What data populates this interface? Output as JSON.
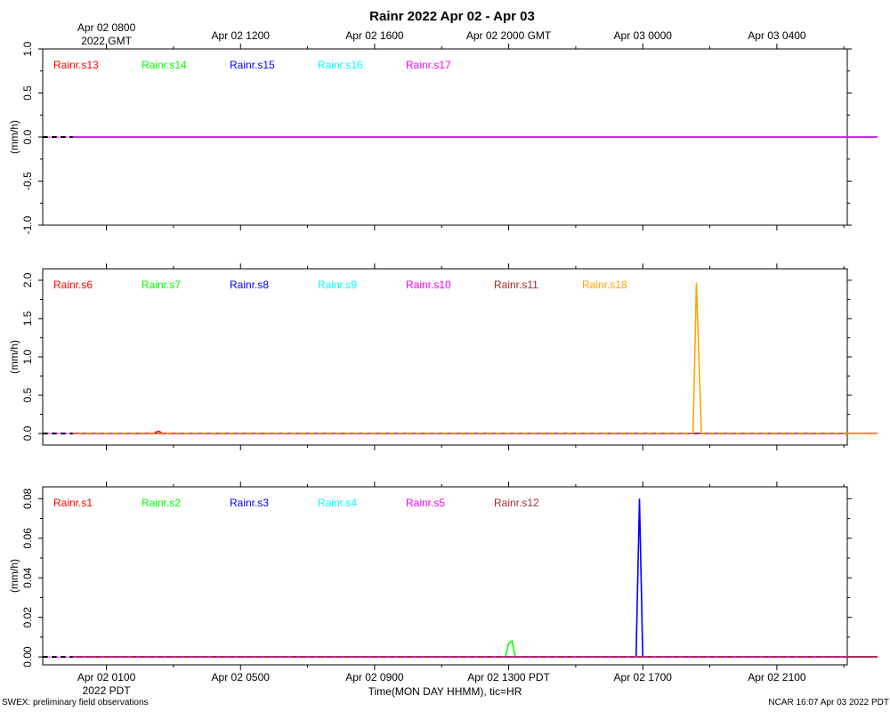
{
  "page": {
    "title": "Rainr 2022 Apr 02 - Apr 03",
    "xlabel": "Time(MON DAY HHMM), tic=HR",
    "footer_left": "SWEX: preliminary field observations",
    "footer_right": "NCAR 16:07 Apr 03 2022 PDT"
  },
  "colors": {
    "red": "#ff0000",
    "green": "#00ff00",
    "blue": "#0000ff",
    "cyan": "#00ffff",
    "magenta": "#ff00ff",
    "brown": "#a52a2a",
    "orange": "#ffa500",
    "axis": "#000000"
  },
  "chart_data": [
    {
      "type": "line",
      "title": "Rainr 2022 Apr 02 - Apr 03",
      "ylabel": "(mm/h)",
      "ylim": [
        -1.0,
        1.0
      ],
      "yticks": [
        -1.0,
        -0.5,
        0.0,
        0.5,
        1.0
      ],
      "yticklabels": [
        "-1.0",
        "-0.5",
        "0.0",
        "0.5",
        "1.0"
      ],
      "top_axis": {
        "ticks": [
          {
            "hour_pdt": 1,
            "label": "Apr 02 0800",
            "sublabel": "2022 GMT"
          },
          {
            "hour_pdt": 5,
            "label": "Apr 02 1200"
          },
          {
            "hour_pdt": 9,
            "label": "Apr 02 1600"
          },
          {
            "hour_pdt": 13,
            "label": "Apr 02 2000 GMT"
          },
          {
            "hour_pdt": 17,
            "label": "Apr 03 0000"
          },
          {
            "hour_pdt": 21,
            "label": "Apr 03 0400"
          }
        ]
      },
      "series": [
        {
          "name": "Rainr.s13",
          "color": "#ff0000",
          "points": [
            [
              0,
              0
            ],
            [
              24,
              0
            ]
          ]
        },
        {
          "name": "Rainr.s14",
          "color": "#00ff00",
          "points": [
            [
              0,
              0
            ],
            [
              24,
              0
            ]
          ]
        },
        {
          "name": "Rainr.s15",
          "color": "#0000ff",
          "points": [
            [
              0,
              0
            ],
            [
              24,
              0
            ]
          ]
        },
        {
          "name": "Rainr.s16",
          "color": "#00ffff",
          "points": [
            [
              0,
              0
            ],
            [
              24,
              0
            ]
          ]
        },
        {
          "name": "Rainr.s17",
          "color": "#ff00ff",
          "points": [
            [
              0,
              0
            ],
            [
              24,
              0
            ]
          ]
        }
      ]
    },
    {
      "type": "line",
      "ylabel": "(mm/h)",
      "ylim": [
        -0.15,
        2.15
      ],
      "yticks": [
        0.0,
        0.5,
        1.0,
        1.5,
        2.0
      ],
      "yticklabels": [
        "0.0",
        "0.5",
        "1.0",
        "1.5",
        "2.0"
      ],
      "series": [
        {
          "name": "Rainr.s6",
          "color": "#ff0000",
          "points": [
            [
              0,
              0
            ],
            [
              2.4,
              0
            ],
            [
              2.55,
              0.03
            ],
            [
              2.7,
              0
            ],
            [
              24,
              0
            ]
          ]
        },
        {
          "name": "Rainr.s7",
          "color": "#00ff00",
          "points": [
            [
              0,
              0
            ],
            [
              24,
              0
            ]
          ]
        },
        {
          "name": "Rainr.s8",
          "color": "#0000ff",
          "points": [
            [
              0,
              0
            ],
            [
              24,
              0
            ]
          ]
        },
        {
          "name": "Rainr.s9",
          "color": "#00ffff",
          "points": [
            [
              0,
              0
            ],
            [
              24,
              0
            ]
          ]
        },
        {
          "name": "Rainr.s10",
          "color": "#ff00ff",
          "points": [
            [
              0,
              0
            ],
            [
              24,
              0
            ]
          ]
        },
        {
          "name": "Rainr.s11",
          "color": "#a52a2a",
          "points": [
            [
              0,
              0
            ],
            [
              24,
              0
            ]
          ]
        },
        {
          "name": "Rainr.s18",
          "color": "#ffa500",
          "points": [
            [
              0,
              0
            ],
            [
              18.4,
              0
            ],
            [
              18.5,
              0
            ],
            [
              18.6,
              1.97
            ],
            [
              18.75,
              0
            ],
            [
              24,
              0
            ]
          ]
        }
      ]
    },
    {
      "type": "line",
      "ylabel": "(mm/h)",
      "ylim": [
        -0.004,
        0.086
      ],
      "yticks": [
        0.0,
        0.02,
        0.04,
        0.06,
        0.08
      ],
      "yticklabels": [
        "0.00",
        "0.02",
        "0.04",
        "0.06",
        "0.08"
      ],
      "bottom_axis": {
        "ticks": [
          {
            "hour_pdt": 1,
            "label": "Apr 02 0100",
            "sublabel": "2022 PDT"
          },
          {
            "hour_pdt": 5,
            "label": "Apr 02 0500"
          },
          {
            "hour_pdt": 9,
            "label": "Apr 02 0900"
          },
          {
            "hour_pdt": 13,
            "label": "Apr 02 1300 PDT"
          },
          {
            "hour_pdt": 17,
            "label": "Apr 02 1700"
          },
          {
            "hour_pdt": 21,
            "label": "Apr 02 2100"
          }
        ]
      },
      "series": [
        {
          "name": "Rainr.s1",
          "color": "#ff0000",
          "points": [
            [
              0,
              0
            ],
            [
              24,
              0
            ]
          ]
        },
        {
          "name": "Rainr.s2",
          "color": "#00ff00",
          "points": [
            [
              0,
              0
            ],
            [
              12.9,
              0
            ],
            [
              13.0,
              0.007
            ],
            [
              13.1,
              0.008
            ],
            [
              13.2,
              0
            ],
            [
              24,
              0
            ]
          ]
        },
        {
          "name": "Rainr.s3",
          "color": "#0000ff",
          "points": [
            [
              0,
              0
            ],
            [
              16.7,
              0
            ],
            [
              16.8,
              0
            ],
            [
              16.9,
              0.08
            ],
            [
              17.0,
              0
            ],
            [
              24,
              0
            ]
          ]
        },
        {
          "name": "Rainr.s4",
          "color": "#00ffff",
          "points": [
            [
              0,
              0
            ],
            [
              24,
              0
            ]
          ]
        },
        {
          "name": "Rainr.s5",
          "color": "#ff00ff",
          "points": [
            [
              0,
              0
            ],
            [
              24,
              0
            ]
          ]
        },
        {
          "name": "Rainr.s12",
          "color": "#a52a2a",
          "points": [
            [
              0,
              0
            ],
            [
              24,
              0
            ]
          ]
        }
      ]
    }
  ]
}
